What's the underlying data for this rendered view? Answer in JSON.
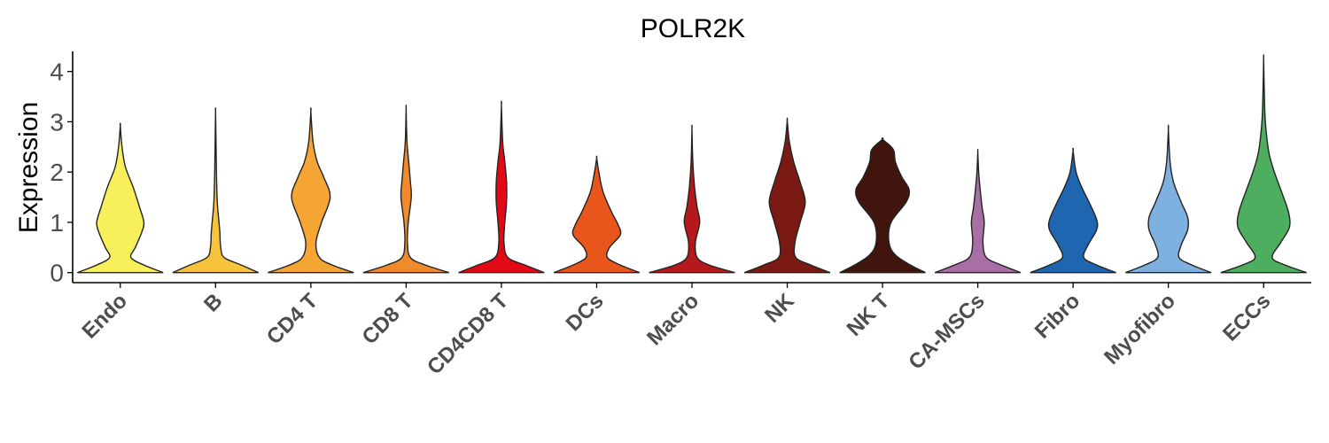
{
  "chart_data": {
    "type": "violin",
    "title": "POLR2K",
    "xlabel": "",
    "ylabel": "Expression",
    "ylim": [
      -0.2,
      4.4
    ],
    "yticks": [
      0,
      1,
      2,
      3,
      4
    ],
    "grid": false,
    "legend": "none",
    "categories": [
      "Endo",
      "B",
      "CD4 T",
      "CD8 T",
      "CD4CD8 T",
      "DCs",
      "Macro",
      "NK",
      "NK T",
      "CA-MSCs",
      "Fibro",
      "Myofibro",
      "ECCs"
    ],
    "colors": [
      "#F8F05A",
      "#F7C33A",
      "#F5A534",
      "#F08A2B",
      "#E30914",
      "#E8561B",
      "#B5191B",
      "#7A1A12",
      "#40150D",
      "#A86FA5",
      "#1E66B0",
      "#7FB1E0",
      "#4CAE5E"
    ],
    "violins": [
      {
        "name": "Endo",
        "max": 2.92,
        "density": [
          [
            0,
            1.0
          ],
          [
            0.15,
            0.55
          ],
          [
            0.3,
            0.25
          ],
          [
            0.5,
            0.35
          ],
          [
            0.8,
            0.5
          ],
          [
            1.0,
            0.55
          ],
          [
            1.3,
            0.45
          ],
          [
            1.7,
            0.3
          ],
          [
            2.1,
            0.12
          ],
          [
            2.5,
            0.04
          ],
          [
            2.92,
            0.0
          ]
        ]
      },
      {
        "name": "B",
        "max": 3.2,
        "density": [
          [
            0,
            1.0
          ],
          [
            0.15,
            0.6
          ],
          [
            0.3,
            0.2
          ],
          [
            0.5,
            0.12
          ],
          [
            0.8,
            0.1
          ],
          [
            1.0,
            0.08
          ],
          [
            1.4,
            0.04
          ],
          [
            2.0,
            0.02
          ],
          [
            2.6,
            0.01
          ],
          [
            3.2,
            0.0
          ]
        ]
      },
      {
        "name": "CD4 T",
        "max": 3.2,
        "density": [
          [
            0,
            1.0
          ],
          [
            0.15,
            0.5
          ],
          [
            0.3,
            0.2
          ],
          [
            0.6,
            0.12
          ],
          [
            1.0,
            0.25
          ],
          [
            1.5,
            0.45
          ],
          [
            1.9,
            0.3
          ],
          [
            2.2,
            0.15
          ],
          [
            2.6,
            0.05
          ],
          [
            3.2,
            0.0
          ]
        ]
      },
      {
        "name": "CD8 T",
        "max": 3.25,
        "density": [
          [
            0,
            1.0
          ],
          [
            0.15,
            0.45
          ],
          [
            0.3,
            0.1
          ],
          [
            0.6,
            0.03
          ],
          [
            1.0,
            0.05
          ],
          [
            1.5,
            0.12
          ],
          [
            1.8,
            0.1
          ],
          [
            2.2,
            0.06
          ],
          [
            2.6,
            0.02
          ],
          [
            3.25,
            0.0
          ]
        ]
      },
      {
        "name": "CD4CD8 T",
        "max": 3.32,
        "density": [
          [
            0,
            1.0
          ],
          [
            0.15,
            0.55
          ],
          [
            0.3,
            0.15
          ],
          [
            0.6,
            0.06
          ],
          [
            1.0,
            0.08
          ],
          [
            1.4,
            0.12
          ],
          [
            1.8,
            0.12
          ],
          [
            2.2,
            0.08
          ],
          [
            2.6,
            0.03
          ],
          [
            3.32,
            0.0
          ]
        ]
      },
      {
        "name": "DCs",
        "max": 2.28,
        "density": [
          [
            0,
            1.0
          ],
          [
            0.15,
            0.55
          ],
          [
            0.3,
            0.25
          ],
          [
            0.5,
            0.3
          ],
          [
            0.75,
            0.55
          ],
          [
            0.95,
            0.5
          ],
          [
            1.2,
            0.35
          ],
          [
            1.6,
            0.15
          ],
          [
            2.0,
            0.05
          ],
          [
            2.28,
            0.0
          ]
        ]
      },
      {
        "name": "Macro",
        "max": 2.85,
        "density": [
          [
            0,
            1.0
          ],
          [
            0.15,
            0.4
          ],
          [
            0.3,
            0.12
          ],
          [
            0.6,
            0.08
          ],
          [
            1.0,
            0.18
          ],
          [
            1.3,
            0.12
          ],
          [
            1.7,
            0.06
          ],
          [
            2.2,
            0.02
          ],
          [
            2.85,
            0.0
          ]
        ]
      },
      {
        "name": "NK",
        "max": 3.02,
        "density": [
          [
            0,
            1.0
          ],
          [
            0.15,
            0.55
          ],
          [
            0.3,
            0.2
          ],
          [
            0.6,
            0.18
          ],
          [
            1.0,
            0.3
          ],
          [
            1.4,
            0.42
          ],
          [
            1.8,
            0.3
          ],
          [
            2.2,
            0.15
          ],
          [
            2.6,
            0.05
          ],
          [
            3.02,
            0.0
          ]
        ]
      },
      {
        "name": "NK T",
        "max": 2.65,
        "density": [
          [
            0,
            1.0
          ],
          [
            0.15,
            0.65
          ],
          [
            0.35,
            0.3
          ],
          [
            0.6,
            0.15
          ],
          [
            1.0,
            0.2
          ],
          [
            1.4,
            0.55
          ],
          [
            1.65,
            0.62
          ],
          [
            1.9,
            0.45
          ],
          [
            2.2,
            0.3
          ],
          [
            2.45,
            0.25
          ],
          [
            2.65,
            0.0
          ]
        ]
      },
      {
        "name": "CA-MSCs",
        "max": 2.4,
        "density": [
          [
            0,
            1.0
          ],
          [
            0.15,
            0.55
          ],
          [
            0.3,
            0.2
          ],
          [
            0.6,
            0.12
          ],
          [
            1.0,
            0.15
          ],
          [
            1.3,
            0.1
          ],
          [
            1.7,
            0.05
          ],
          [
            2.0,
            0.02
          ],
          [
            2.4,
            0.0
          ]
        ]
      },
      {
        "name": "Fibro",
        "max": 2.42,
        "density": [
          [
            0,
            1.0
          ],
          [
            0.15,
            0.55
          ],
          [
            0.3,
            0.25
          ],
          [
            0.55,
            0.35
          ],
          [
            0.85,
            0.55
          ],
          [
            1.05,
            0.55
          ],
          [
            1.35,
            0.4
          ],
          [
            1.7,
            0.2
          ],
          [
            2.0,
            0.07
          ],
          [
            2.42,
            0.0
          ]
        ]
      },
      {
        "name": "Myofibro",
        "max": 2.85,
        "density": [
          [
            0,
            1.0
          ],
          [
            0.15,
            0.55
          ],
          [
            0.3,
            0.25
          ],
          [
            0.55,
            0.3
          ],
          [
            0.85,
            0.45
          ],
          [
            1.1,
            0.45
          ],
          [
            1.4,
            0.3
          ],
          [
            1.8,
            0.12
          ],
          [
            2.2,
            0.04
          ],
          [
            2.85,
            0.0
          ]
        ]
      },
      {
        "name": "ECCs",
        "max": 4.25,
        "density": [
          [
            0,
            1.0
          ],
          [
            0.15,
            0.5
          ],
          [
            0.3,
            0.2
          ],
          [
            0.6,
            0.4
          ],
          [
            0.9,
            0.6
          ],
          [
            1.2,
            0.58
          ],
          [
            1.6,
            0.42
          ],
          [
            2.0,
            0.25
          ],
          [
            2.4,
            0.12
          ],
          [
            3.0,
            0.04
          ],
          [
            3.6,
            0.015
          ],
          [
            4.25,
            0.0
          ]
        ]
      }
    ]
  }
}
